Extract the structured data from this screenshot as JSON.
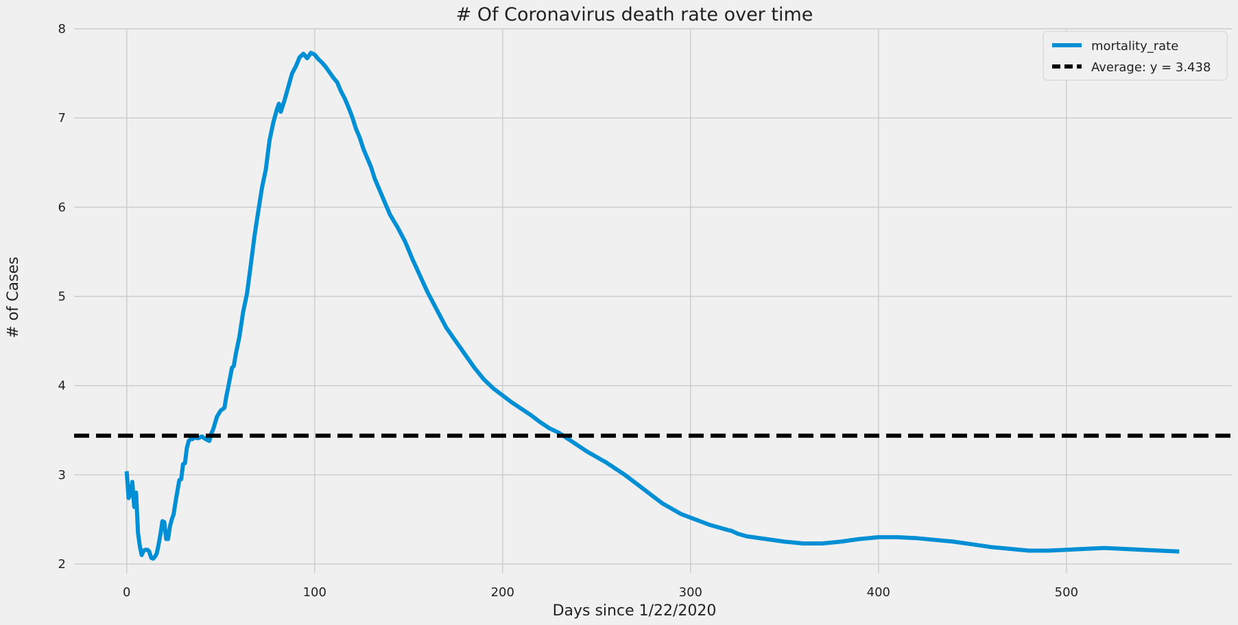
{
  "chart_data": {
    "type": "line",
    "title": "# Of Coronavirus death rate over time",
    "xlabel": "Days since 1/22/2020",
    "ylabel": "# of Cases",
    "xlim": [
      -28,
      588
    ],
    "ylim": [
      1.9,
      8.0
    ],
    "xticks": [
      0,
      100,
      200,
      300,
      400,
      500
    ],
    "yticks": [
      2,
      3,
      4,
      5,
      6,
      7,
      8
    ],
    "grid": true,
    "legend_position": "top-right",
    "series": [
      {
        "name": "mortality_rate",
        "color": "#008fd5",
        "style": "solid",
        "x": [
          0,
          1,
          2,
          3,
          4,
          5,
          6,
          7,
          8,
          9,
          10,
          11,
          12,
          13,
          14,
          15,
          16,
          17,
          18,
          19,
          20,
          21,
          22,
          23,
          24,
          25,
          26,
          27,
          28,
          29,
          30,
          31,
          32,
          33,
          34,
          35,
          36,
          38,
          40,
          42,
          44,
          45,
          46,
          48,
          50,
          52,
          53,
          54,
          56,
          57,
          58,
          60,
          62,
          64,
          66,
          68,
          70,
          72,
          74,
          76,
          78,
          80,
          81,
          82,
          84,
          86,
          88,
          90,
          92,
          94,
          96,
          98,
          100,
          102,
          104,
          106,
          108,
          110,
          112,
          114,
          116,
          118,
          120,
          122,
          124,
          126,
          128,
          130,
          132,
          134,
          136,
          138,
          140,
          142,
          144,
          146,
          148,
          150,
          152,
          155,
          160,
          165,
          170,
          175,
          180,
          185,
          190,
          195,
          200,
          205,
          210,
          215,
          220,
          225,
          230,
          235,
          240,
          245,
          250,
          255,
          260,
          265,
          270,
          275,
          280,
          285,
          290,
          295,
          300,
          305,
          310,
          315,
          320,
          322,
          325,
          330,
          340,
          350,
          360,
          370,
          380,
          390,
          400,
          410,
          420,
          430,
          440,
          450,
          460,
          470,
          480,
          490,
          500,
          510,
          520,
          530,
          540,
          550,
          560
        ],
        "y": [
          3.04,
          2.74,
          2.78,
          2.92,
          2.64,
          2.8,
          2.35,
          2.2,
          2.1,
          2.15,
          2.16,
          2.16,
          2.14,
          2.07,
          2.06,
          2.08,
          2.12,
          2.22,
          2.34,
          2.48,
          2.47,
          2.28,
          2.28,
          2.42,
          2.5,
          2.56,
          2.7,
          2.82,
          2.94,
          2.95,
          3.12,
          3.13,
          3.3,
          3.38,
          3.4,
          3.4,
          3.42,
          3.41,
          3.43,
          3.4,
          3.38,
          3.46,
          3.51,
          3.65,
          3.72,
          3.75,
          3.88,
          3.98,
          4.2,
          4.22,
          4.35,
          4.55,
          4.83,
          5.03,
          5.35,
          5.68,
          5.95,
          6.22,
          6.42,
          6.75,
          6.95,
          7.1,
          7.16,
          7.07,
          7.2,
          7.35,
          7.5,
          7.58,
          7.68,
          7.72,
          7.67,
          7.73,
          7.71,
          7.66,
          7.62,
          7.57,
          7.51,
          7.45,
          7.4,
          7.3,
          7.22,
          7.12,
          7.01,
          6.88,
          6.78,
          6.65,
          6.55,
          6.45,
          6.32,
          6.22,
          6.12,
          6.02,
          5.92,
          5.85,
          5.78,
          5.7,
          5.62,
          5.52,
          5.42,
          5.28,
          5.05,
          4.85,
          4.65,
          4.5,
          4.35,
          4.2,
          4.07,
          3.97,
          3.89,
          3.81,
          3.74,
          3.67,
          3.59,
          3.52,
          3.47,
          3.4,
          3.33,
          3.26,
          3.2,
          3.14,
          3.07,
          3.0,
          2.92,
          2.84,
          2.76,
          2.68,
          2.62,
          2.56,
          2.52,
          2.48,
          2.44,
          2.41,
          2.38,
          2.37,
          2.34,
          2.31,
          2.28,
          2.25,
          2.23,
          2.23,
          2.25,
          2.28,
          2.3,
          2.3,
          2.29,
          2.27,
          2.25,
          2.22,
          2.19,
          2.17,
          2.15,
          2.15,
          2.16,
          2.17,
          2.18,
          2.17,
          2.16,
          2.15,
          2.14
        ]
      },
      {
        "name": "Average: y = 3.438",
        "color": "#000000",
        "style": "dashed",
        "x": [
          -28,
          588
        ],
        "y": [
          3.438,
          3.438
        ]
      }
    ]
  }
}
